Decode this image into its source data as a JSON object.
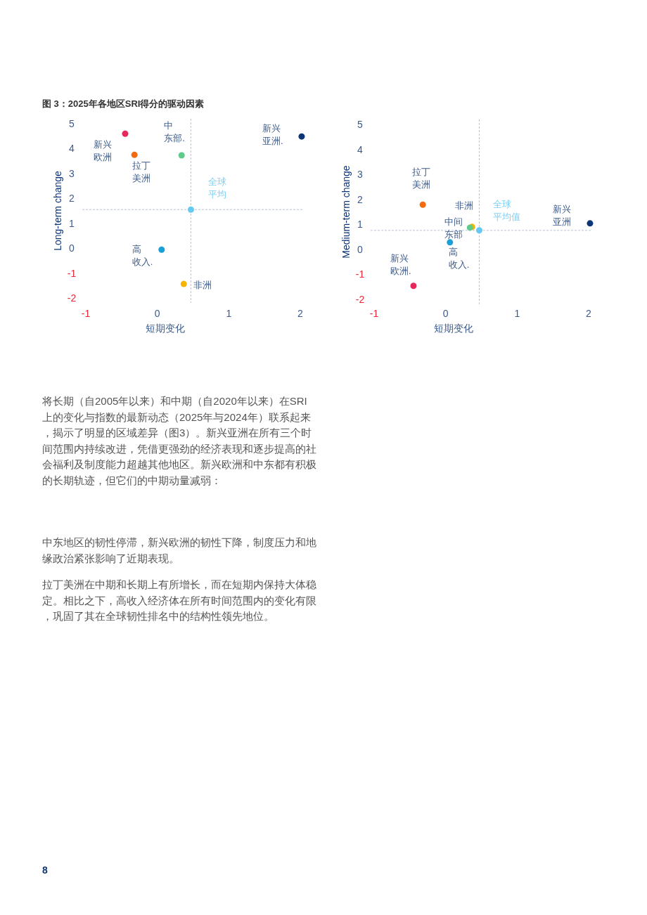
{
  "chart_data": [
    {
      "type": "scatter",
      "title": "图 3：2025年各地区SRI得分的驱动因素",
      "xlabel": "短期变化",
      "ylabel": "Long-term change",
      "xlim": [
        -1.05,
        2.05
      ],
      "ylim": [
        -2.2,
        5.2
      ],
      "xticks": [
        -1,
        0,
        1,
        2
      ],
      "yticks": [
        -2,
        -1,
        0,
        1,
        2,
        3,
        4,
        5
      ],
      "marker": "circle",
      "grid": false,
      "legend": false,
      "series": [
        {
          "name": "新兴欧洲",
          "color": "#e8285a",
          "x": [
            -0.45
          ],
          "values": [
            4.6
          ]
        },
        {
          "name": "拉丁美洲",
          "color": "#f26b0f",
          "x": [
            -0.32
          ],
          "values": [
            3.75
          ]
        },
        {
          "name": "中东部.",
          "color": "#5ecb8a",
          "x": [
            0.34
          ],
          "values": [
            3.73
          ]
        },
        {
          "name": "新兴亚洲.",
          "color": "#0c3477",
          "x": [
            2.02
          ],
          "values": [
            4.49
          ]
        },
        {
          "name": "全球平均",
          "color": "#66c9f2",
          "x": [
            0.47
          ],
          "values": [
            1.55
          ]
        },
        {
          "name": "高收入.",
          "color": "#1a9fd6",
          "x": [
            0.06
          ],
          "values": [
            -0.06
          ]
        },
        {
          "name": "非洲",
          "color": "#f6b400",
          "x": [
            0.37
          ],
          "values": [
            -1.44
          ]
        }
      ],
      "ref_lines": [
        {
          "axis": "x",
          "value": 0.47,
          "color": "#b8c4dc",
          "line_style": "dashed"
        },
        {
          "axis": "y",
          "value": 1.55,
          "color": "#b8c4dc",
          "line_style": "dashed"
        }
      ],
      "annotations": [
        "将长期（自2005年以来）和中期（自2020年以来）在SRI上的变化与指数的最新动态（2025年与2024年）联系起来，揭示了明显的区域差异（图3）。新兴亚洲在所有三个时间范围内持续改进，凭借更强劲的经济表现和逐步提高的社会福利及制度能力超越其他地区。新兴欧洲和中东都有积极的长期轨迹，但它们的中期动量减弱：",
        "中东地区的韧性停滞，新兴欧洲的韧性下降，制度压力和地缘政治紧张影响了近期表现。",
        "拉丁美洲在中期和长期上有所增长，而在短期内保持大体稳定。相比之下，高收入经济体在所有时间范围内的变化有限，巩固了其在全球韧性排名中的结构性领先地位。",
        "8"
      ]
    },
    {
      "type": "scatter",
      "xlabel": "短期变化",
      "ylabel": "Medium-term change",
      "xlim": [
        -1.05,
        2.05
      ],
      "ylim": [
        -2.2,
        5.2
      ],
      "xticks": [
        -1,
        0,
        1,
        2
      ],
      "yticks": [
        -2,
        -1,
        0,
        1,
        2,
        3,
        4,
        5
      ],
      "marker": "circle",
      "grid": false,
      "legend": false,
      "series": [
        {
          "name": "拉丁美洲",
          "color": "#f26b0f",
          "x": [
            -0.32
          ],
          "values": [
            1.79
          ]
        },
        {
          "name": "非洲",
          "color": "#f6b400",
          "x": [
            0.37
          ],
          "values": [
            0.9
          ]
        },
        {
          "name": "中间东部",
          "color": "#5ecb8a",
          "x": [
            0.34
          ],
          "values": [
            0.87
          ]
        },
        {
          "name": "全球平均值",
          "color": "#66c9f2",
          "x": [
            0.47
          ],
          "values": [
            0.76
          ]
        },
        {
          "name": "新兴亚洲",
          "color": "#0c3477",
          "x": [
            2.02
          ],
          "values": [
            1.04
          ]
        },
        {
          "name": "高收入.",
          "color": "#1a9fd6",
          "x": [
            0.06
          ],
          "values": [
            0.28
          ]
        },
        {
          "name": "新兴欧洲.",
          "color": "#e8285a",
          "x": [
            -0.45
          ],
          "values": [
            -1.46
          ]
        }
      ],
      "ref_lines": [
        {
          "axis": "x",
          "value": 0.47,
          "color": "#b8c4dc",
          "line_style": "dashed"
        },
        {
          "axis": "y",
          "value": 0.76,
          "color": "#b8c4dc",
          "line_style": "dashed"
        }
      ]
    }
  ]
}
